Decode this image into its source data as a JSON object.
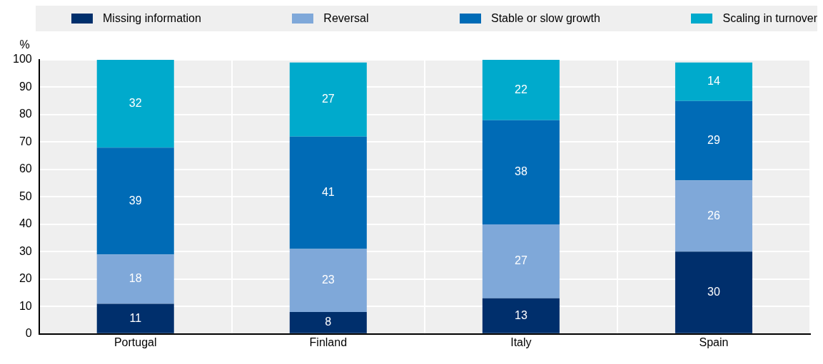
{
  "chart_data": {
    "type": "bar",
    "stacked": true,
    "categories": [
      "Portugal",
      "Finland",
      "Italy",
      "Spain"
    ],
    "series": [
      {
        "name": "Missing information",
        "color": "#002f6c",
        "values": [
          11,
          8,
          13,
          30
        ]
      },
      {
        "name": "Reversal",
        "color": "#7fa8d9",
        "values": [
          18,
          23,
          27,
          26
        ]
      },
      {
        "name": "Stable or slow growth",
        "color": "#006bb6",
        "values": [
          39,
          41,
          38,
          29
        ]
      },
      {
        "name": "Scaling in turnover",
        "color": "#00aacc",
        "values": [
          32,
          27,
          22,
          14
        ]
      }
    ],
    "ylabel": "%",
    "ylim": [
      0,
      100
    ],
    "yticks": [
      0,
      10,
      20,
      30,
      40,
      50,
      60,
      70,
      80,
      90,
      100
    ],
    "grid": true,
    "legend": "top",
    "data_labels": true
  }
}
